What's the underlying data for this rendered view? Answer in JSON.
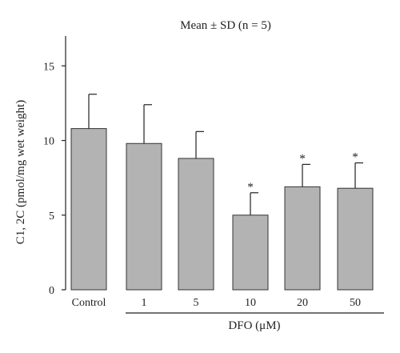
{
  "chart_data": {
    "type": "bar",
    "title": "Mean ± SD (n = 5)",
    "xlabel": "DFO (μM)",
    "ylabel": "C1, 2C (pmol/mg wet weight)",
    "categories": [
      "Control",
      "1",
      "5",
      "10",
      "20",
      "50"
    ],
    "values": [
      10.8,
      9.8,
      8.8,
      5.0,
      6.9,
      6.8
    ],
    "errors": [
      2.3,
      2.6,
      1.8,
      1.5,
      1.5,
      1.7
    ],
    "significance": [
      "",
      "",
      "",
      "*",
      "*",
      "*"
    ],
    "ylim": [
      0,
      17
    ],
    "yticks": [
      0,
      5,
      10,
      15
    ],
    "bar_color": "#b3b3b3",
    "bar_edge_color": "#333333",
    "grid": false,
    "legend": "none"
  }
}
